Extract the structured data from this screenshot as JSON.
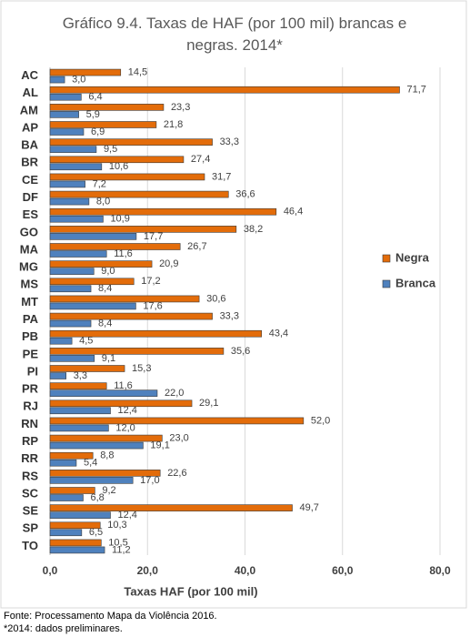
{
  "chart_data": {
    "type": "hbar",
    "title": "Gráfico 9.4. Taxas de HAF (por 100 mil) brancas e negras. 2014*",
    "x_label": "Taxas HAF (por 100 mil)",
    "categories": [
      "AC",
      "AL",
      "AM",
      "AP",
      "BA",
      "BR",
      "CE",
      "DF",
      "ES",
      "GO",
      "MA",
      "MG",
      "MS",
      "MT",
      "PA",
      "PB",
      "PE",
      "PI",
      "PR",
      "RJ",
      "RN",
      "RP",
      "RR",
      "RS",
      "SC",
      "SE",
      "SP",
      "TO"
    ],
    "series": [
      {
        "name": "Negra",
        "color": "#e36c0a",
        "values": [
          14.5,
          71.7,
          23.3,
          21.8,
          33.3,
          27.4,
          31.7,
          36.6,
          46.4,
          38.2,
          26.7,
          20.9,
          17.2,
          30.6,
          33.3,
          43.4,
          35.6,
          15.3,
          11.6,
          29.1,
          52.0,
          23.0,
          8.8,
          22.6,
          9.2,
          49.7,
          10.3,
          10.5
        ],
        "value_labels": [
          "14,5",
          "71,7",
          "23,3",
          "21,8",
          "33,3",
          "27,4",
          "31,7",
          "36,6",
          "46,4",
          "38,2",
          "26,7",
          "20,9",
          "17,2",
          "30,6",
          "33,3",
          "43,4",
          "35,6",
          "15,3",
          "11,6",
          "29,1",
          "52,0",
          "23,0",
          "8,8",
          "22,6",
          "9,2",
          "49,7",
          "10,3",
          "10,5"
        ]
      },
      {
        "name": "Branca",
        "color": "#4f81bd",
        "values": [
          3.0,
          6.4,
          5.9,
          6.9,
          9.5,
          10.6,
          7.2,
          8.0,
          10.9,
          17.7,
          11.6,
          9.0,
          8.4,
          17.6,
          8.4,
          4.5,
          9.1,
          3.3,
          22.0,
          12.4,
          12.0,
          19.1,
          5.4,
          17.0,
          6.8,
          12.4,
          6.5,
          11.2
        ],
        "value_labels": [
          "3,0",
          "6,4",
          "5,9",
          "6,9",
          "9,5",
          "10,6",
          "7,2",
          "8,0",
          "10,9",
          "17,7",
          "11,6",
          "9,0",
          "8,4",
          "17,6",
          "8,4",
          "4,5",
          "9,1",
          "3,3",
          "22,0",
          "12,4",
          "12,0",
          "19,1",
          "5,4",
          "17,0",
          "6,8",
          "12,4",
          "6,5",
          "11,2"
        ]
      }
    ],
    "xlim": [
      0,
      80
    ],
    "xticks": [
      {
        "value": 0,
        "label": "0,0"
      },
      {
        "value": 20,
        "label": "20,0"
      },
      {
        "value": 40,
        "label": "40,0"
      },
      {
        "value": 60,
        "label": "60,0"
      },
      {
        "value": 80,
        "label": "80,0"
      }
    ],
    "grid": true,
    "legend": "right"
  },
  "footer": [
    "Fonte: Processamento Mapa da Violência 2016.",
    "*2014: dados preliminares."
  ]
}
